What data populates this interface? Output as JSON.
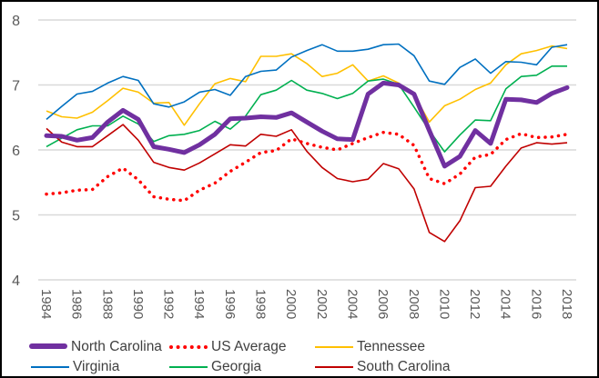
{
  "chart_data": {
    "type": "line",
    "title": "",
    "xlabel": "",
    "ylabel": "",
    "ylim": [
      4,
      8
    ],
    "yticks": [
      "4",
      "5",
      "6",
      "7",
      "8"
    ],
    "xlim": [
      1984,
      2018
    ],
    "xticks": [
      "1984",
      "1986",
      "1988",
      "1990",
      "1992",
      "1994",
      "1996",
      "1998",
      "2000",
      "2002",
      "2004",
      "2006",
      "2008",
      "2010",
      "2012",
      "2014",
      "2016",
      "2018"
    ],
    "grid": "horizontal",
    "legend_position": "bottom",
    "x": [
      1984,
      1985,
      1986,
      1987,
      1988,
      1989,
      1990,
      1991,
      1992,
      1993,
      1994,
      1995,
      1996,
      1997,
      1998,
      1999,
      2000,
      2001,
      2002,
      2003,
      2004,
      2005,
      2006,
      2007,
      2008,
      2009,
      2010,
      2011,
      2012,
      2013,
      2014,
      2015,
      2016,
      2017,
      2018
    ],
    "series": [
      {
        "name": "North Carolina",
        "color": "#7030A0",
        "style": "thick",
        "values": [
          6.22,
          6.21,
          6.15,
          6.19,
          6.43,
          6.61,
          6.47,
          6.05,
          6.01,
          5.96,
          6.08,
          6.24,
          6.48,
          6.49,
          6.51,
          6.5,
          6.57,
          6.43,
          6.29,
          6.17,
          6.16,
          6.86,
          7.03,
          7.0,
          6.86,
          6.3,
          5.75,
          5.9,
          6.3,
          6.1,
          6.78,
          6.77,
          6.73,
          6.87,
          6.96
        ]
      },
      {
        "name": "US Average",
        "color": "#FF0000",
        "style": "dotted",
        "values": [
          5.32,
          5.34,
          5.38,
          5.39,
          5.59,
          5.72,
          5.54,
          5.28,
          5.24,
          5.22,
          5.38,
          5.49,
          5.67,
          5.81,
          5.96,
          5.99,
          6.17,
          6.1,
          6.04,
          6.0,
          6.1,
          6.19,
          6.27,
          6.24,
          6.07,
          5.56,
          5.48,
          5.63,
          5.89,
          5.93,
          6.16,
          6.25,
          6.19,
          6.2,
          6.24
        ]
      },
      {
        "name": "Tennessee",
        "color": "#FFC000",
        "style": "thin",
        "values": [
          6.6,
          6.51,
          6.49,
          6.58,
          6.76,
          6.95,
          6.89,
          6.72,
          6.73,
          6.38,
          6.71,
          7.02,
          7.1,
          7.05,
          7.44,
          7.44,
          7.48,
          7.33,
          7.13,
          7.18,
          7.31,
          7.06,
          7.14,
          7.03,
          6.85,
          6.43,
          6.68,
          6.78,
          6.93,
          7.03,
          7.31,
          7.48,
          7.53,
          7.6,
          7.56
        ]
      },
      {
        "name": "Virginia",
        "color": "#0070C0",
        "style": "thin",
        "values": [
          6.47,
          6.67,
          6.86,
          6.9,
          7.03,
          7.13,
          7.07,
          6.71,
          6.66,
          6.74,
          6.89,
          6.93,
          6.84,
          7.13,
          7.21,
          7.23,
          7.43,
          7.53,
          7.62,
          7.52,
          7.52,
          7.55,
          7.62,
          7.63,
          7.45,
          7.06,
          7.01,
          7.27,
          7.4,
          7.18,
          7.36,
          7.35,
          7.31,
          7.58,
          7.62
        ]
      },
      {
        "name": "Georgia",
        "color": "#00B050",
        "style": "thin",
        "values": [
          6.05,
          6.18,
          6.31,
          6.37,
          6.37,
          6.52,
          6.4,
          6.13,
          6.22,
          6.24,
          6.3,
          6.44,
          6.32,
          6.52,
          6.85,
          6.92,
          7.07,
          6.92,
          6.87,
          6.79,
          6.87,
          7.06,
          7.09,
          7.01,
          6.66,
          6.3,
          5.97,
          6.23,
          6.46,
          6.45,
          6.94,
          7.13,
          7.15,
          7.29,
          7.29
        ]
      },
      {
        "name": "South Carolina",
        "color": "#C00000",
        "style": "thin",
        "values": [
          6.33,
          6.12,
          6.05,
          6.05,
          6.22,
          6.39,
          6.15,
          5.81,
          5.73,
          5.69,
          5.8,
          5.94,
          6.08,
          6.06,
          6.24,
          6.21,
          6.31,
          5.98,
          5.73,
          5.56,
          5.51,
          5.55,
          5.79,
          5.71,
          5.4,
          4.73,
          4.59,
          4.91,
          5.42,
          5.44,
          5.75,
          6.03,
          6.11,
          6.09,
          6.11
        ]
      }
    ]
  }
}
